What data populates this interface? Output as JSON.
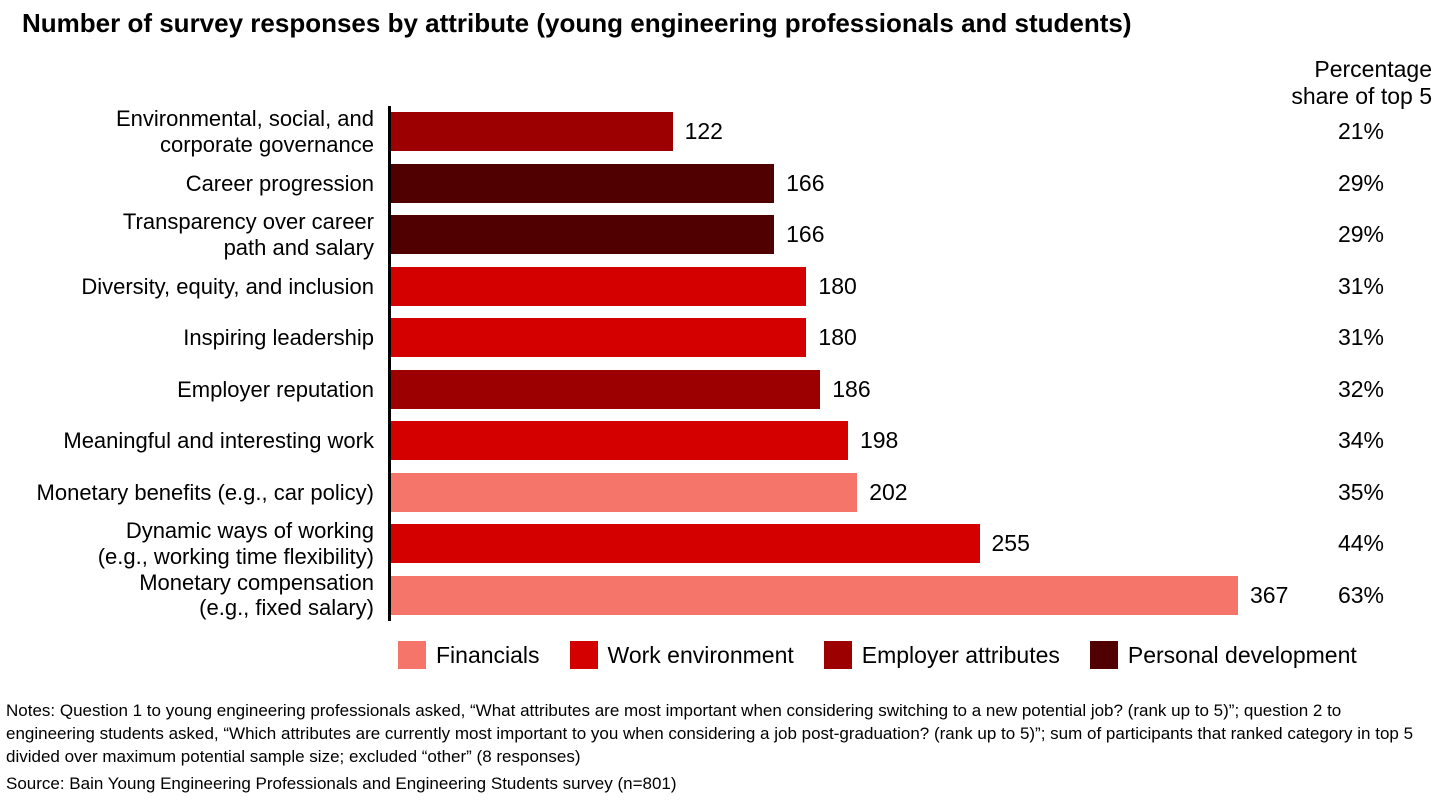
{
  "title": "Number of survey responses by attribute (young engineering professionals and students)",
  "percentage_header": {
    "line1": "Percentage",
    "line2": "share of top 5"
  },
  "chart_data": {
    "type": "bar",
    "orientation": "horizontal",
    "title": "Number of survey responses by attribute (young engineering professionals and students)",
    "value_axis_max": 367,
    "categories": [
      "Environmental, social, and\ncorporate governance",
      "Career progression",
      "Transparency over career\npath and salary",
      "Diversity, equity, and inclusion",
      "Inspiring leadership",
      "Employer reputation",
      "Meaningful and interesting work",
      "Monetary benefits (e.g., car policy)",
      "Dynamic ways of working\n(e.g., working time flexibility)",
      "Monetary compensation\n(e.g., fixed salary)"
    ],
    "values": [
      122,
      166,
      166,
      180,
      180,
      186,
      198,
      202,
      255,
      367
    ],
    "percent_share_top5": [
      "21%",
      "29%",
      "29%",
      "31%",
      "31%",
      "32%",
      "34%",
      "35%",
      "44%",
      "63%"
    ],
    "groups": [
      "employer",
      "personal",
      "personal",
      "work",
      "work",
      "employer",
      "work",
      "financials",
      "work",
      "financials"
    ],
    "group_colors": {
      "financials": "#f6756b",
      "work": "#d40000",
      "employer": "#9c0000",
      "personal": "#500000"
    },
    "legend": [
      {
        "key": "financials",
        "label": "Financials",
        "color": "#f6756b"
      },
      {
        "key": "work",
        "label": "Work environment",
        "color": "#d40000"
      },
      {
        "key": "employer",
        "label": "Employer attributes",
        "color": "#9c0000"
      },
      {
        "key": "personal",
        "label": "Personal development",
        "color": "#500000"
      }
    ],
    "legend_position": "bottom",
    "grid": false
  },
  "notes": "Notes: Question 1 to young engineering professionals asked, “What attributes are most important when considering switching to a new potential job? (rank up to 5)”; question 2 to engineering students asked, “Which attributes are currently most important to you when considering a job post-graduation? (rank up to 5)”; sum of participants that ranked category in top 5 divided over maximum potential sample size; excluded “other” (8 responses)",
  "source": "Source: Bain Young Engineering Professionals and Engineering Students survey (n=801)"
}
